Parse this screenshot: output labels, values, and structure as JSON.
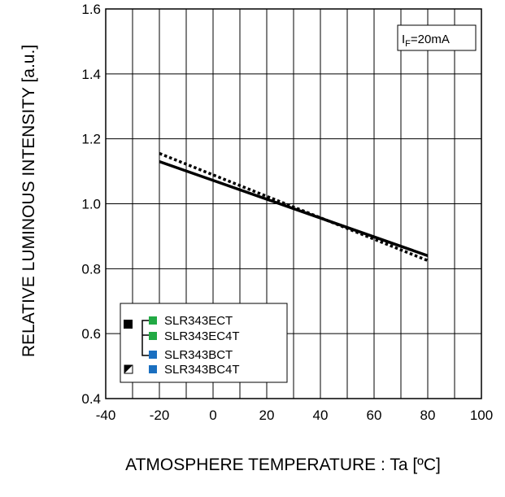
{
  "chart_data": {
    "type": "line",
    "title": "",
    "xlabel": "ATMOSPHERE TEMPERATURE : Ta [ºC]",
    "ylabel": "RELATIVE LUMINOUS INTENSITY [a.u.]",
    "xlim": [
      -40,
      100
    ],
    "ylim": [
      0.4,
      1.6
    ],
    "x_ticks": [
      -40,
      -20,
      0,
      20,
      40,
      60,
      80,
      100
    ],
    "x_tick_labels": [
      "-40",
      "-20",
      "0",
      "20",
      "40",
      "60",
      "80",
      "100"
    ],
    "y_ticks": [
      0.4,
      0.6,
      0.8,
      1.0,
      1.2,
      1.4,
      1.6
    ],
    "y_tick_labels": [
      "0.4",
      "0.6",
      "0.8",
      "1.0",
      "1.2",
      "1.4",
      "1.6"
    ],
    "x_grid_step": 10,
    "y_grid_step": 0.2,
    "grid": true,
    "annotation": {
      "main": "I",
      "sub": "F",
      "rest": "=20mA"
    },
    "legend_position": "bottom-left",
    "series": [
      {
        "style": "solid",
        "marker": "solid-black-square",
        "x": [
          -20,
          80
        ],
        "y": [
          1.13,
          0.84
        ]
      },
      {
        "style": "dotted",
        "marker": "half-filled-square",
        "x": [
          -20,
          80
        ],
        "y": [
          1.155,
          0.825
        ]
      }
    ],
    "legend": {
      "entries": [
        {
          "label": "SLR343ECT",
          "color": "#22aa44"
        },
        {
          "label": "SLR343EC4T",
          "color": "#22aa44"
        },
        {
          "label": "SLR343BCT",
          "color": "#1a6fc0"
        },
        {
          "label": "SLR343BC4T",
          "color": "#1a6fc0"
        }
      ]
    }
  }
}
